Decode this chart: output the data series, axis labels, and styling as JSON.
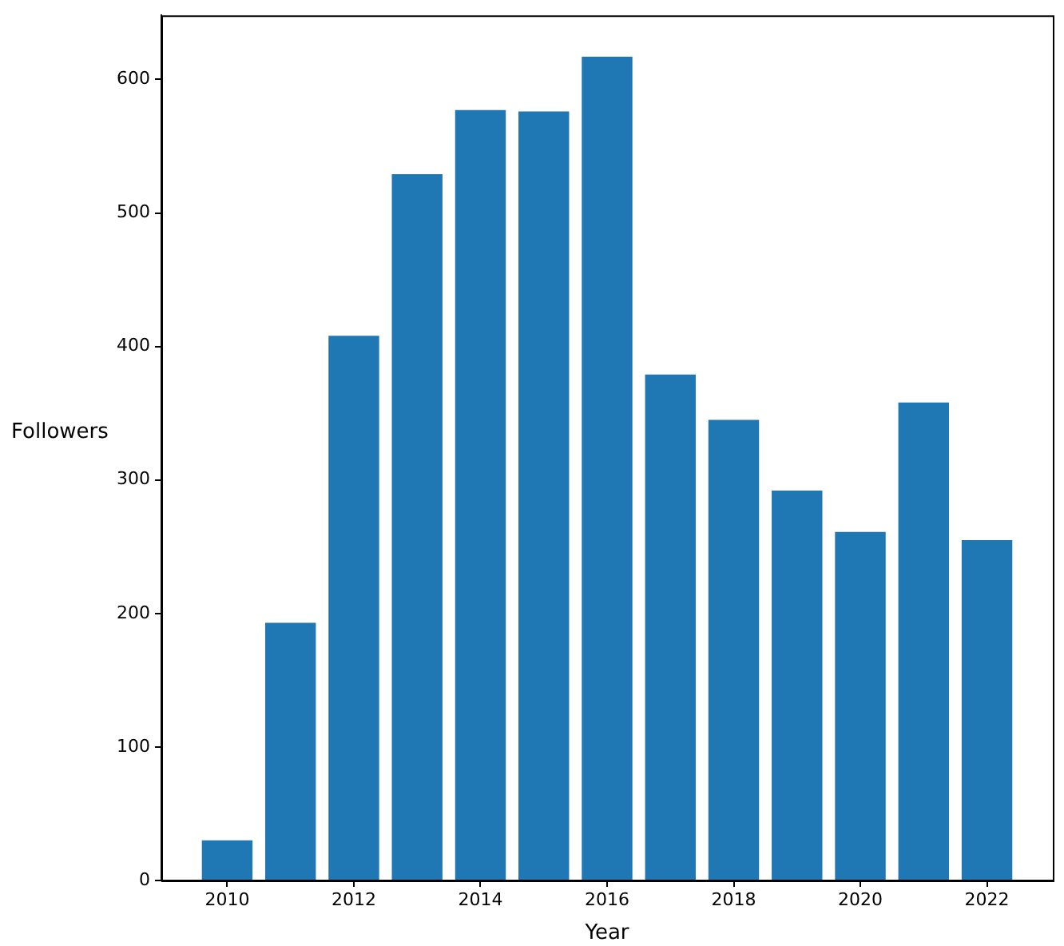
{
  "chart_data": {
    "type": "bar",
    "xlabel": "Year",
    "ylabel": "Followers",
    "x": [
      2010,
      2011,
      2012,
      2013,
      2014,
      2015,
      2016,
      2017,
      2018,
      2019,
      2020,
      2021,
      2022
    ],
    "values": [
      30,
      193,
      408,
      529,
      577,
      576,
      617,
      379,
      345,
      292,
      261,
      358,
      255
    ],
    "color": "#1f77b4",
    "xlim": [
      2008.96,
      2023.04
    ],
    "xticks": [
      2010,
      2012,
      2014,
      2016,
      2018,
      2020,
      2022
    ],
    "ylim": [
      0,
      648
    ],
    "yticks": [
      0,
      100,
      200,
      300,
      400,
      500,
      600
    ],
    "grid": false,
    "legend": false
  }
}
